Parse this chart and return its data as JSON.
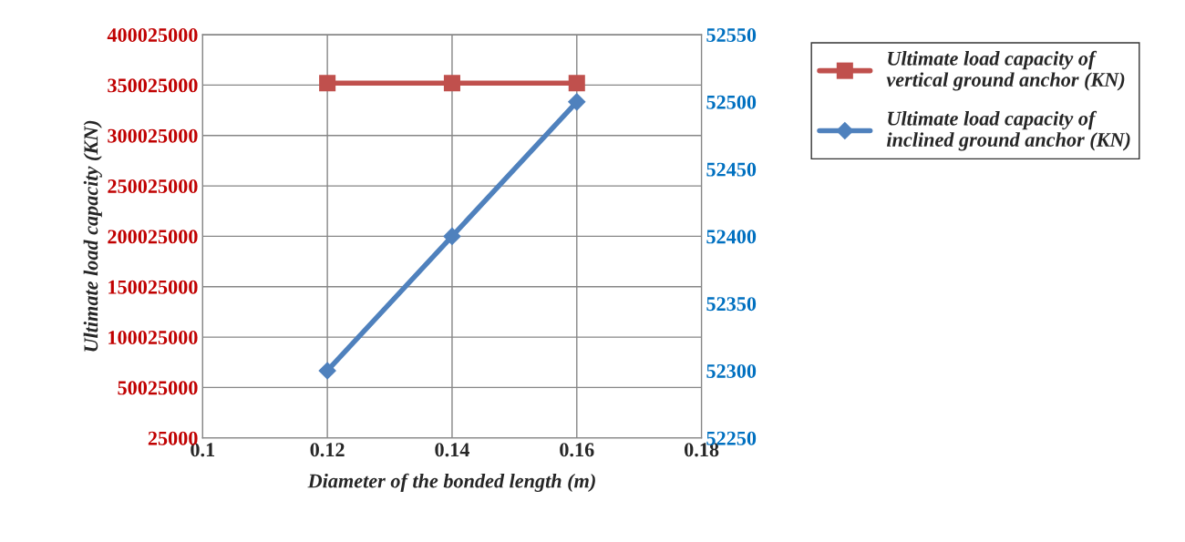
{
  "chart_data": {
    "type": "line",
    "xlabel": "Diameter of the bonded length (m)",
    "ylabel": "Ultimate load capacity (KN)",
    "x": [
      0.12,
      0.14,
      0.16
    ],
    "series": [
      {
        "name": "Ultimate load capacity of\nvertical ground anchor (KN)",
        "color": "#c0504d",
        "values": [
          352000000,
          352000000,
          352000000
        ],
        "marker": "square",
        "axis": "y"
      },
      {
        "name": "Ultimate load capacity of\ninclined ground anchor (KN)",
        "color": "#4f81bd",
        "values": [
          52300,
          52400,
          52500
        ],
        "marker": "diamond",
        "axis": "y2"
      }
    ],
    "xlim": [
      0.1,
      0.18
    ],
    "xticks": [
      0.1,
      0.12,
      0.14,
      0.16,
      0.18
    ],
    "ylim": [
      25000,
      400025000
    ],
    "yticks": [
      25000,
      50025000,
      100025000,
      150025000,
      200025000,
      250025000,
      300025000,
      350025000,
      400025000
    ],
    "y2lim": [
      52250,
      52550
    ],
    "y2ticks": [
      52250,
      52300,
      52350,
      52400,
      52450,
      52500,
      52550
    ],
    "grid": true,
    "legend": "top right",
    "line_style": "solid"
  }
}
